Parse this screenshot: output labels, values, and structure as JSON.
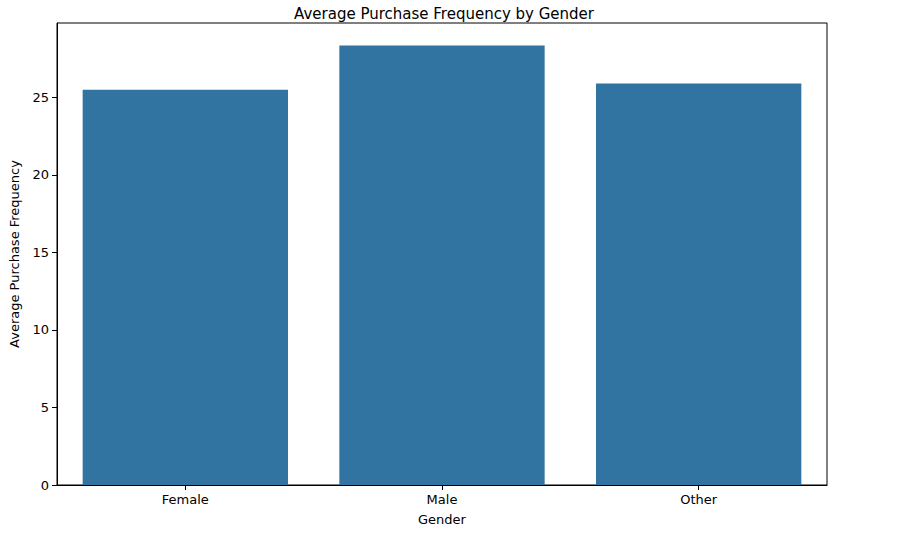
{
  "chart_data": {
    "type": "bar",
    "title": "Average Purchase Frequency by Gender",
    "x_label": "Gender",
    "y_label": "Average Purchase Frequency",
    "categories": [
      "Female",
      "Male",
      "Other"
    ],
    "values": [
      25.5,
      28.35,
      25.9
    ],
    "color": "#3274a1",
    "ylim": [
      0,
      29.8
    ],
    "yticks": [
      0,
      5,
      10,
      15,
      20,
      25
    ],
    "grid": false
  }
}
